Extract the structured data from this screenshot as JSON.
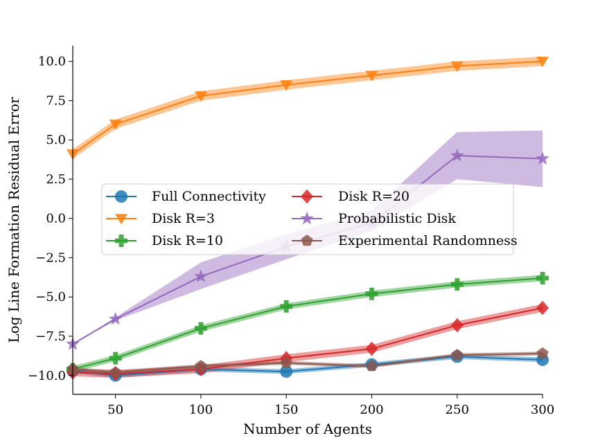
{
  "chart_data": {
    "type": "line",
    "title": "",
    "xlabel": "Number of Agents",
    "ylabel": "Log Line Formation Residual Error",
    "xlim": [
      25,
      300
    ],
    "ylim": [
      -11.2,
      11.0
    ],
    "xticks": [
      50,
      100,
      150,
      200,
      250,
      300
    ],
    "yticks": [
      -10.0,
      -7.5,
      -5.0,
      -2.5,
      0.0,
      2.5,
      5.0,
      7.5,
      10.0
    ],
    "x": [
      25,
      50,
      100,
      150,
      200,
      250,
      300
    ],
    "legend_placement": "center-left",
    "grid": false,
    "series": [
      {
        "name": "Full Connectivity",
        "color": "#1f77b4",
        "marker": "circle",
        "values": [
          -9.7,
          -10.0,
          -9.6,
          -9.75,
          -9.3,
          -8.8,
          -9.0
        ],
        "band": 0.15
      },
      {
        "name": "Disk R=3",
        "color": "#ff7f0e",
        "marker": "triangle-down",
        "values": [
          4.1,
          6.0,
          7.8,
          8.5,
          9.1,
          9.7,
          10.0
        ],
        "band": 0.3
      },
      {
        "name": "Disk R=10",
        "color": "#2ca02c",
        "marker": "plus",
        "values": [
          -9.6,
          -8.9,
          -7.0,
          -5.6,
          -4.8,
          -4.2,
          -3.8
        ],
        "band": 0.2
      },
      {
        "name": "Disk R=20",
        "color": "#d62728",
        "marker": "diamond",
        "values": [
          -9.8,
          -9.9,
          -9.6,
          -8.9,
          -8.3,
          -6.8,
          -5.7
        ],
        "band": 0.25
      },
      {
        "name": "Probabilistic Disk",
        "color": "#9467bd",
        "marker": "star",
        "values": [
          -8.0,
          -6.4,
          -3.7,
          -1.8,
          -0.3,
          4.0,
          3.8
        ],
        "band_low": [
          -8.0,
          -6.5,
          -4.5,
          -2.6,
          -0.8,
          2.5,
          2.0
        ],
        "band_high": [
          -8.0,
          -6.3,
          -2.8,
          -1.0,
          0.5,
          5.5,
          5.6
        ]
      },
      {
        "name": "Experimental Randomness",
        "color": "#8c564b",
        "marker": "pentagon",
        "values": [
          -9.6,
          -9.8,
          -9.4,
          -9.2,
          -9.4,
          -8.7,
          -8.6
        ],
        "band": 0.12
      }
    ]
  }
}
